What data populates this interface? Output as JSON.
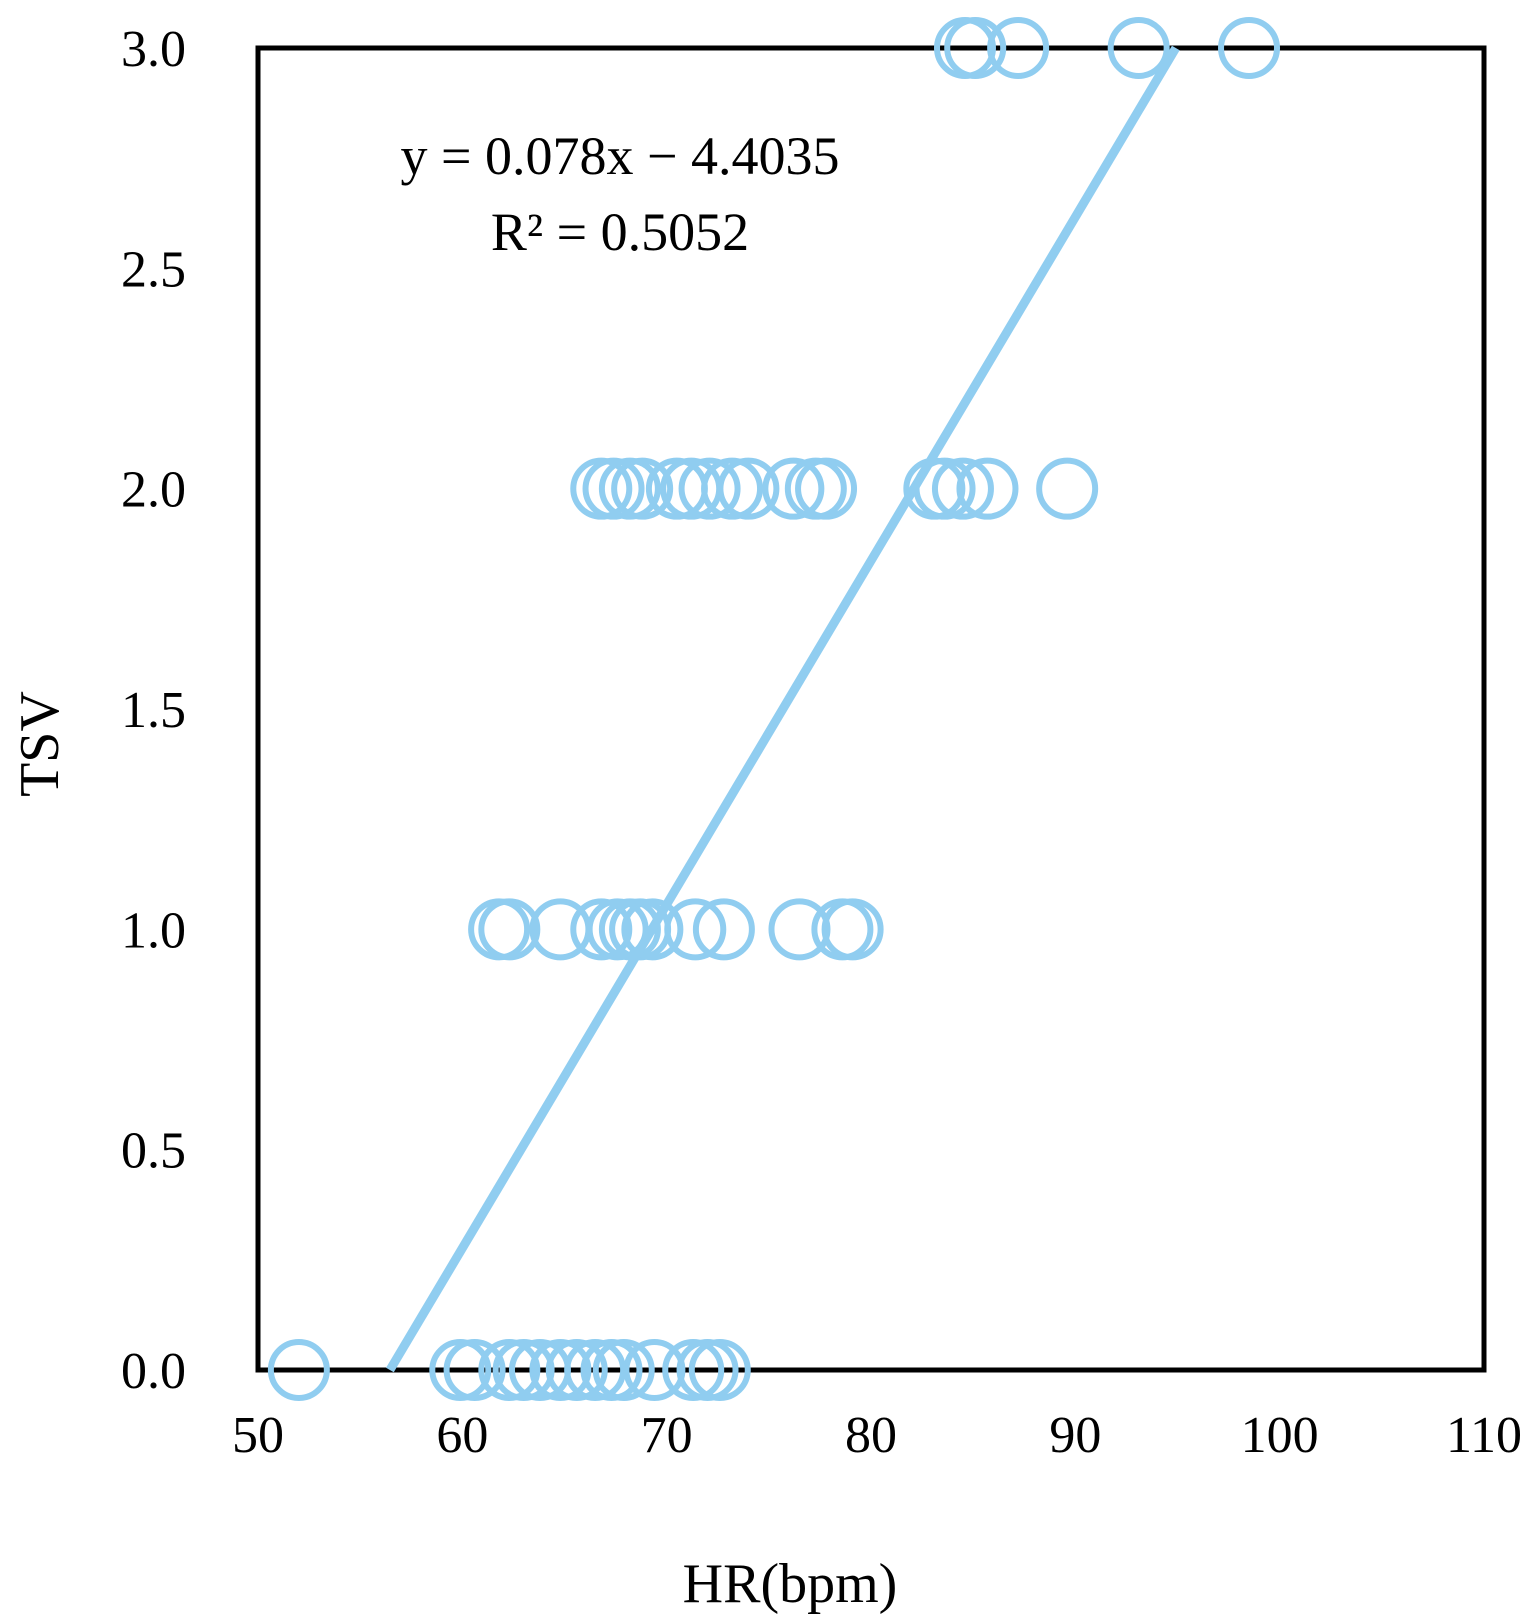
{
  "chart_data": {
    "type": "scatter",
    "xlabel": "HR(bpm)",
    "ylabel": "TSV",
    "xlim": [
      50,
      110
    ],
    "ylim": [
      0,
      3
    ],
    "x_ticks": [
      "50",
      "60",
      "70",
      "80",
      "90",
      "100",
      "110"
    ],
    "y_ticks": [
      "0.0",
      "0.5",
      "1.0",
      "1.5",
      "2.0",
      "2.5",
      "3.0"
    ],
    "grid": false,
    "legend": "none",
    "marker_color": "#90CDF0",
    "trendline": {
      "slope": 0.078,
      "intercept": -4.4035,
      "equation_label": "y = 0.078x − 4.4035",
      "r2_label": "R² = 0.5052"
    },
    "series": [
      {
        "points": [
          {
            "x": 52.0,
            "y": 0
          },
          {
            "x": 59.9,
            "y": 0
          },
          {
            "x": 60.6,
            "y": 0
          },
          {
            "x": 62.3,
            "y": 0
          },
          {
            "x": 63.0,
            "y": 0
          },
          {
            "x": 63.8,
            "y": 0
          },
          {
            "x": 64.8,
            "y": 0
          },
          {
            "x": 65.6,
            "y": 0
          },
          {
            "x": 66.5,
            "y": 0
          },
          {
            "x": 67.3,
            "y": 0
          },
          {
            "x": 67.9,
            "y": 0
          },
          {
            "x": 69.4,
            "y": 0
          },
          {
            "x": 71.3,
            "y": 0
          },
          {
            "x": 72.0,
            "y": 0
          },
          {
            "x": 72.6,
            "y": 0
          },
          {
            "x": 61.8,
            "y": 1
          },
          {
            "x": 62.3,
            "y": 1
          },
          {
            "x": 64.8,
            "y": 1
          },
          {
            "x": 66.8,
            "y": 1
          },
          {
            "x": 67.6,
            "y": 1
          },
          {
            "x": 68.2,
            "y": 1
          },
          {
            "x": 68.7,
            "y": 1
          },
          {
            "x": 69.3,
            "y": 1
          },
          {
            "x": 71.4,
            "y": 1
          },
          {
            "x": 72.8,
            "y": 1
          },
          {
            "x": 76.5,
            "y": 1
          },
          {
            "x": 78.6,
            "y": 1
          },
          {
            "x": 79.1,
            "y": 1
          },
          {
            "x": 66.8,
            "y": 2
          },
          {
            "x": 67.4,
            "y": 2
          },
          {
            "x": 68.2,
            "y": 2
          },
          {
            "x": 68.8,
            "y": 2
          },
          {
            "x": 70.5,
            "y": 2
          },
          {
            "x": 71.2,
            "y": 2
          },
          {
            "x": 72.1,
            "y": 2
          },
          {
            "x": 73.2,
            "y": 2
          },
          {
            "x": 74.0,
            "y": 2
          },
          {
            "x": 76.2,
            "y": 2
          },
          {
            "x": 77.3,
            "y": 2
          },
          {
            "x": 77.8,
            "y": 2
          },
          {
            "x": 83.1,
            "y": 2
          },
          {
            "x": 83.6,
            "y": 2
          },
          {
            "x": 84.5,
            "y": 2
          },
          {
            "x": 85.7,
            "y": 2
          },
          {
            "x": 89.6,
            "y": 2
          },
          {
            "x": 84.6,
            "y": 3
          },
          {
            "x": 85.1,
            "y": 3
          },
          {
            "x": 87.2,
            "y": 3
          },
          {
            "x": 93.1,
            "y": 3
          },
          {
            "x": 98.5,
            "y": 3
          }
        ]
      }
    ]
  }
}
